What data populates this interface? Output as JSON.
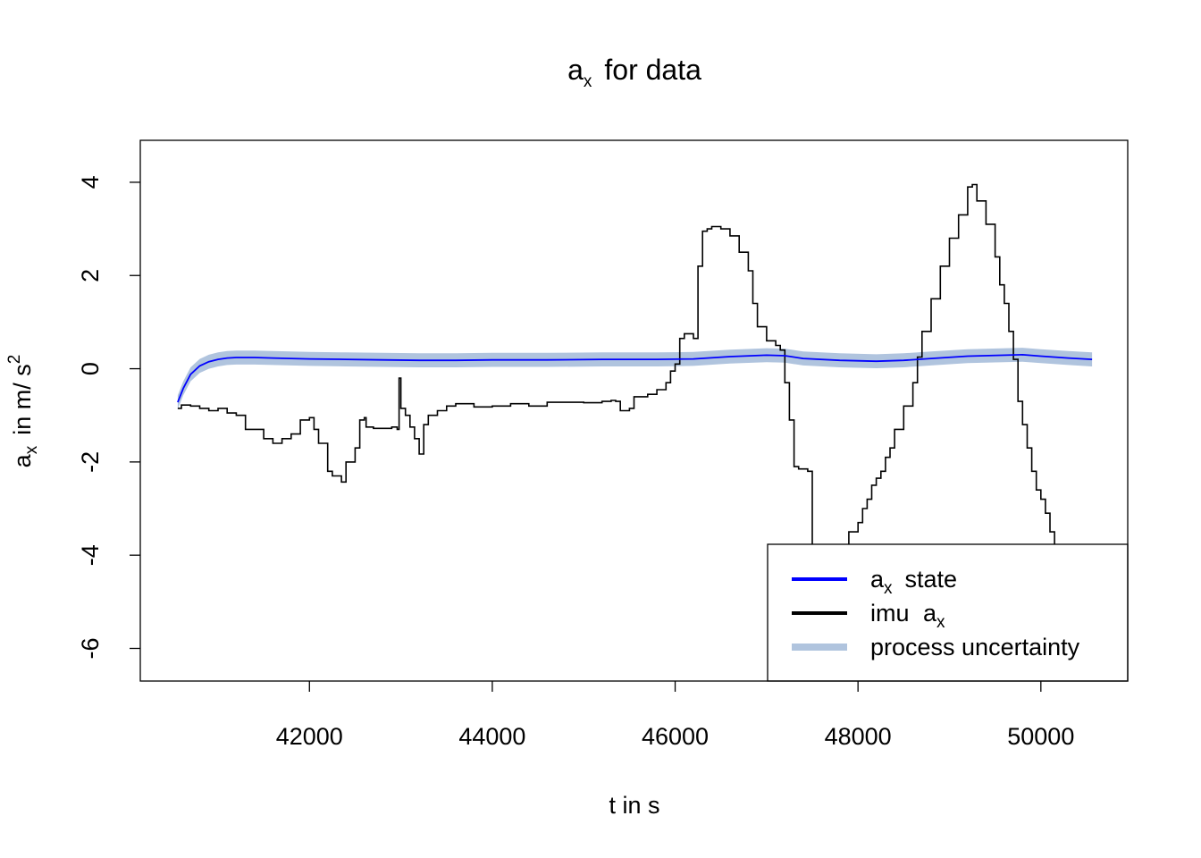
{
  "chart_data": {
    "type": "line",
    "title": {
      "base": "a",
      "sub": "x",
      "rest": "for data"
    },
    "xlabel": "t in s",
    "ylabel": {
      "base": "a",
      "sub": "x",
      "mid": "in m/ s",
      "sup": "2"
    },
    "xlim": [
      40150,
      50950
    ],
    "ylim": [
      -6.7,
      4.9
    ],
    "xticks": [
      42000,
      44000,
      46000,
      48000,
      50000
    ],
    "yticks": [
      -6,
      -4,
      -2,
      0,
      2,
      4
    ],
    "grid": false,
    "legend": {
      "position": "bottom-right",
      "entries": [
        {
          "key": "state",
          "base": "a",
          "sub": "x",
          "after": "state",
          "color": "#0000ff",
          "width": 4
        },
        {
          "key": "imu",
          "before": "imu",
          "base": "a",
          "sub": "x",
          "color": "#000000",
          "width": 4
        },
        {
          "key": "unc",
          "text": "process uncertainty",
          "color": "#b0c4de",
          "width": 8
        }
      ]
    },
    "series": [
      {
        "key": "state",
        "color": "#0000ff",
        "x": [
          40560,
          40620,
          40700,
          40800,
          40900,
          41000,
          41100,
          41200,
          41400,
          41600,
          41800,
          42000,
          42400,
          42800,
          43200,
          43600,
          44000,
          44600,
          45200,
          45800,
          46200,
          46600,
          47000,
          47200,
          47400,
          47800,
          48200,
          48500,
          48800,
          49200,
          49800,
          50000,
          50300,
          50560
        ],
        "y": [
          -0.72,
          -0.42,
          -0.12,
          0.06,
          0.15,
          0.2,
          0.23,
          0.24,
          0.24,
          0.23,
          0.22,
          0.21,
          0.2,
          0.19,
          0.18,
          0.18,
          0.19,
          0.19,
          0.2,
          0.2,
          0.21,
          0.26,
          0.29,
          0.28,
          0.22,
          0.18,
          0.16,
          0.18,
          0.22,
          0.27,
          0.3,
          0.27,
          0.23,
          0.2
        ]
      },
      {
        "key": "unc",
        "color": "#b0c4de",
        "halfwidth": 0.15
      },
      {
        "key": "imu",
        "color": "#000000",
        "x": [
          40560,
          40600,
          40700,
          40800,
          40900,
          41000,
          41100,
          41200,
          41300,
          41400,
          41500,
          41600,
          41700,
          41800,
          41900,
          42000,
          42050,
          42100,
          42200,
          42250,
          42350,
          42400,
          42500,
          42550,
          42600,
          42620,
          42700,
          42900,
          42960,
          42980,
          43000,
          43050,
          43100,
          43150,
          43200,
          43250,
          43300,
          43400,
          43500,
          43600,
          43800,
          44000,
          44200,
          44400,
          44600,
          44800,
          45000,
          45200,
          45300,
          45350,
          45400,
          45500,
          45550,
          45700,
          45800,
          45900,
          45950,
          46000,
          46050,
          46100,
          46200,
          46250,
          46300,
          46350,
          46400,
          46500,
          46600,
          46700,
          46800,
          46850,
          46900,
          47000,
          47100,
          47150,
          47200,
          47250,
          47300,
          47350,
          47450,
          47500,
          47550,
          47600,
          47650,
          47700,
          47800,
          47850,
          47900,
          48000,
          48050,
          48100,
          48150,
          48200,
          48250,
          48300,
          48350,
          48400,
          48500,
          48600,
          48650,
          48700,
          48800,
          48900,
          49000,
          49100,
          49200,
          49250,
          49300,
          49400,
          49500,
          49550,
          49600,
          49650,
          49700,
          49750,
          49800,
          49850,
          49900,
          49950,
          50000,
          50050,
          50100,
          50150,
          50200,
          50250,
          50300
        ],
        "y": [
          -0.85,
          -0.78,
          -0.8,
          -0.85,
          -0.9,
          -0.85,
          -0.95,
          -1.0,
          -1.3,
          -1.3,
          -1.5,
          -1.6,
          -1.5,
          -1.4,
          -1.1,
          -1.05,
          -1.3,
          -1.6,
          -2.2,
          -2.3,
          -2.43,
          -2.0,
          -1.7,
          -1.1,
          -1.05,
          -1.25,
          -1.28,
          -1.25,
          -1.3,
          -0.2,
          -0.85,
          -1.0,
          -1.25,
          -1.5,
          -1.83,
          -1.2,
          -1.0,
          -0.9,
          -0.8,
          -0.75,
          -0.82,
          -0.8,
          -0.75,
          -0.8,
          -0.72,
          -0.72,
          -0.73,
          -0.7,
          -0.68,
          -0.7,
          -0.9,
          -0.85,
          -0.6,
          -0.55,
          -0.45,
          -0.3,
          -0.05,
          0.1,
          0.65,
          0.75,
          0.65,
          2.2,
          2.95,
          3.0,
          3.05,
          3.0,
          2.85,
          2.5,
          2.1,
          1.4,
          0.9,
          0.6,
          0.5,
          0.4,
          -0.3,
          -1.1,
          -2.1,
          -2.15,
          -2.2,
          -4.1,
          -4.6,
          -4.9,
          -5.3,
          -4.4,
          -4.25,
          -3.9,
          -3.5,
          -3.3,
          -3.0,
          -2.8,
          -2.5,
          -2.35,
          -2.2,
          -1.9,
          -1.7,
          -1.3,
          -0.8,
          -0.3,
          0.25,
          0.8,
          1.5,
          2.2,
          2.8,
          3.3,
          3.9,
          3.95,
          3.6,
          3.1,
          2.4,
          1.8,
          1.4,
          0.8,
          0.2,
          -0.7,
          -1.2,
          -1.7,
          -2.2,
          -2.6,
          -2.8,
          -3.1,
          -3.5,
          -4.0,
          -4.5,
          -4.9,
          -5.3
        ]
      }
    ]
  }
}
